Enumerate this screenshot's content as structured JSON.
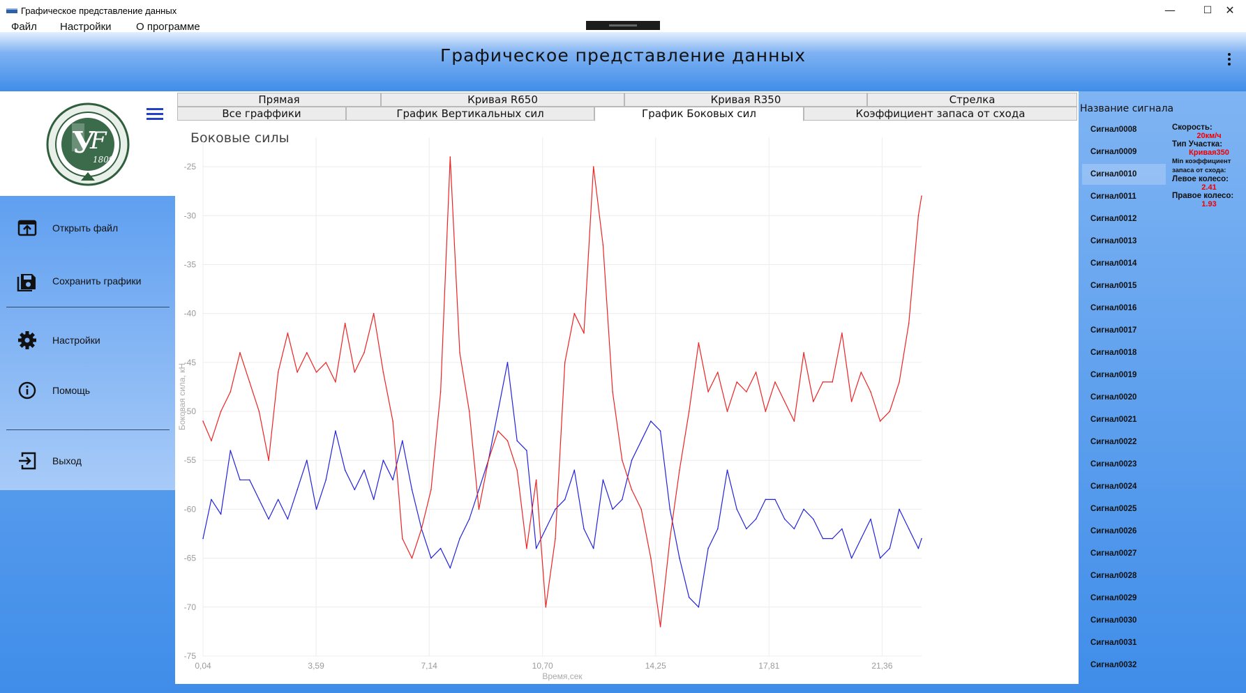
{
  "window": {
    "title": "Графическое представление данных",
    "minimize": "—",
    "maximize": "☐",
    "close": "✕"
  },
  "menu": [
    "Файл",
    "Настройки",
    "О программе"
  ],
  "header": {
    "title": "Графическое представление данных"
  },
  "sidebar": {
    "items": [
      {
        "label": "Открыть файл",
        "icon": "open-file-icon"
      },
      {
        "label": "Сохранить графики",
        "icon": "save-icon"
      },
      {
        "label": "Настройки",
        "icon": "gear-icon"
      },
      {
        "label": "Помощь",
        "icon": "info-icon"
      },
      {
        "label": "Выход",
        "icon": "exit-icon"
      }
    ]
  },
  "tabs": {
    "row1": [
      "Прямая",
      "Кривая R650",
      "Кривая R350",
      "Стрелка"
    ],
    "row2": [
      "Все граффики",
      "График  Вертикальных сил",
      "График Боковых сил",
      "Коэффициент запаса от схода"
    ],
    "active": "График Боковых сил"
  },
  "right_panel": {
    "header": "Название сигнала",
    "signals": [
      "Сигнал0008",
      "Сигнал0009",
      "Сигнал0010",
      "Сигнал0011",
      "Сигнал0012",
      "Сигнал0013",
      "Сигнал0014",
      "Сигнал0015",
      "Сигнал0016",
      "Сигнал0017",
      "Сигнал0018",
      "Сигнал0019",
      "Сигнал0020",
      "Сигнал0021",
      "Сигнал0022",
      "Сигнал0023",
      "Сигнал0024",
      "Сигнал0025",
      "Сигнал0026",
      "Сигнал0027",
      "Сигнал0028",
      "Сигнал0029",
      "Сигнал0030",
      "Сигнал0031",
      "Сигнал0032"
    ],
    "selected": "Сигнал0010",
    "info": {
      "speed_label": "Скорость:",
      "speed_value": "20км/ч",
      "section_label": "Тип Участка:",
      "section_value": "Кривая350",
      "min_coef_label": "Min коэффициент запаса от схода:",
      "left_label": "Левое колесо:",
      "left_value": "2.41",
      "right_label": "Правое колесо:",
      "right_value": "1.93"
    }
  },
  "colors": {
    "left_wheel": "#2222dd",
    "right_wheel": "#ee2222",
    "menu_icon": "#2340c8"
  },
  "chart_data": {
    "type": "line",
    "title": "Боковые силы",
    "xlabel": "Время,сек",
    "ylabel": "Боковая сила, кН",
    "xlim": [
      0.04,
      22.6
    ],
    "ylim": [
      -75,
      -22
    ],
    "x_ticks": [
      "0,04",
      "3,59",
      "7,14",
      "10,70",
      "14,25",
      "17,81",
      "21,36"
    ],
    "x_tick_values": [
      0.04,
      3.59,
      7.14,
      10.7,
      14.25,
      17.81,
      21.36
    ],
    "y_ticks": [
      -25,
      -30,
      -35,
      -40,
      -45,
      -50,
      -55,
      -60,
      -65,
      -70,
      -75
    ],
    "grid": true,
    "legend": "bottom-center",
    "series": [
      {
        "name": "Левое колесо",
        "color": "#2222dd",
        "x": [
          0.04,
          0.3,
          0.6,
          0.9,
          1.2,
          1.5,
          1.8,
          2.1,
          2.4,
          2.7,
          3.0,
          3.3,
          3.6,
          3.9,
          4.2,
          4.5,
          4.8,
          5.1,
          5.4,
          5.7,
          6.0,
          6.3,
          6.6,
          6.9,
          7.2,
          7.5,
          7.8,
          8.1,
          8.4,
          8.7,
          9.0,
          9.3,
          9.6,
          9.9,
          10.2,
          10.5,
          10.8,
          11.1,
          11.4,
          11.7,
          12.0,
          12.3,
          12.6,
          12.9,
          13.2,
          13.5,
          13.8,
          14.1,
          14.4,
          14.7,
          15.0,
          15.3,
          15.6,
          15.9,
          16.2,
          16.5,
          16.8,
          17.1,
          17.4,
          17.7,
          18.0,
          18.3,
          18.6,
          18.9,
          19.2,
          19.5,
          19.8,
          20.1,
          20.4,
          20.7,
          21.0,
          21.3,
          21.6,
          21.9,
          22.2,
          22.5,
          22.6
        ],
        "y": [
          -63,
          -59,
          -60.5,
          -54,
          -57,
          -57,
          -59,
          -61,
          -59,
          -61,
          -58,
          -55,
          -60,
          -57,
          -52,
          -56,
          -58,
          -56,
          -59,
          -55,
          -57,
          -53,
          -58,
          -62,
          -65,
          -64,
          -66,
          -63,
          -61,
          -58,
          -55,
          -50,
          -45,
          -53,
          -54,
          -64,
          -62,
          -60,
          -59,
          -56,
          -62,
          -64,
          -57,
          -60,
          -59,
          -55,
          -53,
          -51,
          -52,
          -60,
          -65,
          -69,
          -70,
          -64,
          -62,
          -56,
          -60,
          -62,
          -61,
          -59,
          -59,
          -61,
          -62,
          -60,
          -61,
          -63,
          -63,
          -62,
          -65,
          -63,
          -61,
          -65,
          -64,
          -60,
          -62,
          -64,
          -63
        ]
      },
      {
        "name": "Правое колесо",
        "color": "#ee2222",
        "x": [
          0.04,
          0.3,
          0.6,
          0.9,
          1.2,
          1.5,
          1.8,
          2.1,
          2.4,
          2.7,
          3.0,
          3.3,
          3.6,
          3.9,
          4.2,
          4.5,
          4.8,
          5.1,
          5.4,
          5.7,
          6.0,
          6.3,
          6.6,
          6.9,
          7.2,
          7.5,
          7.8,
          8.1,
          8.4,
          8.7,
          9.0,
          9.3,
          9.6,
          9.9,
          10.2,
          10.5,
          10.8,
          11.1,
          11.4,
          11.7,
          12.0,
          12.3,
          12.6,
          12.9,
          13.2,
          13.5,
          13.8,
          14.1,
          14.4,
          14.7,
          15.0,
          15.3,
          15.6,
          15.9,
          16.2,
          16.5,
          16.8,
          17.1,
          17.4,
          17.7,
          18.0,
          18.3,
          18.6,
          18.9,
          19.2,
          19.5,
          19.8,
          20.1,
          20.4,
          20.7,
          21.0,
          21.3,
          21.6,
          21.9,
          22.2,
          22.5,
          22.6
        ],
        "y": [
          -51,
          -53,
          -50,
          -48,
          -44,
          -47,
          -50,
          -55,
          -46,
          -42,
          -46,
          -44,
          -46,
          -45,
          -47,
          -41,
          -46,
          -44,
          -40,
          -46,
          -51,
          -63,
          -65,
          -62,
          -58,
          -48,
          -24,
          -44,
          -50,
          -60,
          -55,
          -52,
          -53,
          -56,
          -64,
          -57,
          -70,
          -63,
          -45,
          -40,
          -42,
          -25,
          -33,
          -48,
          -55,
          -58,
          -60,
          -65,
          -72,
          -63,
          -56,
          -50,
          -43,
          -48,
          -46,
          -50,
          -47,
          -48,
          -46,
          -50,
          -47,
          -49,
          -51,
          -44,
          -49,
          -47,
          -47,
          -42,
          -49,
          -46,
          -48,
          -51,
          -50,
          -47,
          -41,
          -30,
          -28
        ]
      }
    ]
  }
}
